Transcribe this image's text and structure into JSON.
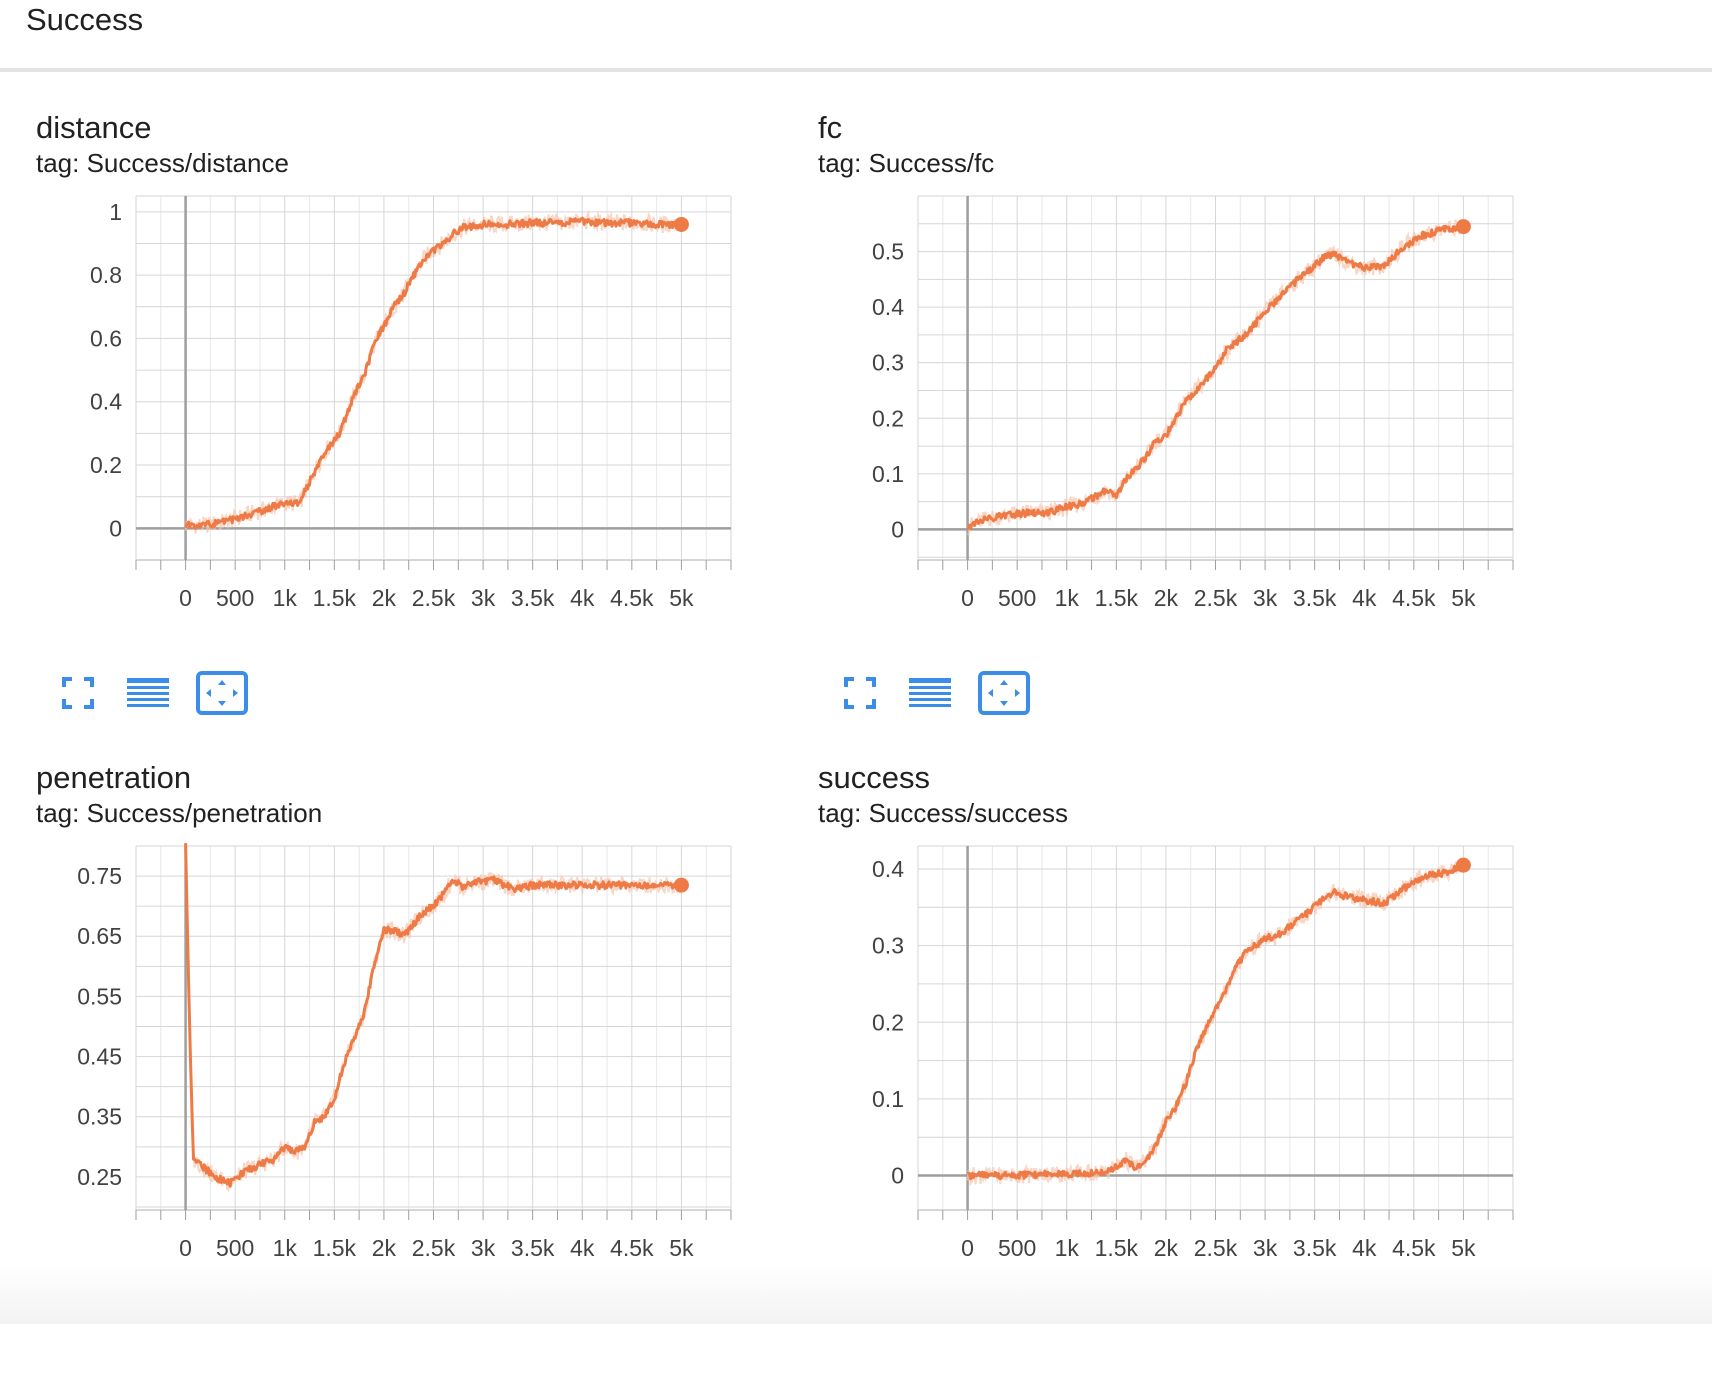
{
  "section": {
    "title": "Success"
  },
  "colors": {
    "series": "#ee7a45",
    "series_light": "#f6c4ae",
    "grid": "#d6d6d6",
    "axis": "#9e9e9e",
    "icon": "#3b8de8"
  },
  "toolbar_icons": [
    "fullscreen-icon",
    "data-table-icon",
    "fit-domain-icon"
  ],
  "chart_data": [
    {
      "type": "line",
      "title": "distance",
      "tag": "tag: Success/distance",
      "xlim": [
        -500,
        5500
      ],
      "ylim": [
        -0.1,
        1.05
      ],
      "xticks": [
        0,
        500,
        1000,
        1500,
        2000,
        2500,
        3000,
        3500,
        4000,
        4500,
        5000
      ],
      "xtick_labels": [
        "0",
        "500",
        "1k",
        "1.5k",
        "2k",
        "2.5k",
        "3k",
        "3.5k",
        "4k",
        "4.5k",
        "5k"
      ],
      "yticks": [
        0,
        0.2,
        0.4,
        0.6,
        0.8,
        1
      ],
      "ytick_labels": [
        "0",
        "0.2",
        "0.4",
        "0.6",
        "0.8",
        "1"
      ],
      "series": [
        {
          "x": [
            0,
            200,
            400,
            600,
            800,
            1000,
            1150,
            1300,
            1400,
            1550,
            1700,
            1800,
            1900,
            2000,
            2100,
            2200,
            2300,
            2400,
            2500,
            2600,
            2700,
            2800,
            2900,
            3000,
            3200,
            3500,
            3800,
            4000,
            4200,
            4400,
            4600,
            4800,
            5000
          ],
          "y": [
            0.01,
            0.01,
            0.02,
            0.04,
            0.06,
            0.08,
            0.08,
            0.18,
            0.24,
            0.3,
            0.42,
            0.48,
            0.58,
            0.64,
            0.7,
            0.74,
            0.8,
            0.85,
            0.88,
            0.9,
            0.93,
            0.95,
            0.955,
            0.96,
            0.96,
            0.965,
            0.965,
            0.97,
            0.965,
            0.965,
            0.965,
            0.96,
            0.96
          ]
        }
      ]
    },
    {
      "type": "line",
      "title": "fc",
      "tag": "tag: Success/fc",
      "xlim": [
        -500,
        5500
      ],
      "ylim": [
        -0.055,
        0.6
      ],
      "xticks": [
        0,
        500,
        1000,
        1500,
        2000,
        2500,
        3000,
        3500,
        4000,
        4500,
        5000
      ],
      "xtick_labels": [
        "0",
        "500",
        "1k",
        "1.5k",
        "2k",
        "2.5k",
        "3k",
        "3.5k",
        "4k",
        "4.5k",
        "5k"
      ],
      "yticks": [
        0,
        0.1,
        0.2,
        0.3,
        0.4,
        0.5
      ],
      "ytick_labels": [
        "0",
        "0.1",
        "0.2",
        "0.3",
        "0.4",
        "0.5"
      ],
      "series": [
        {
          "x": [
            0,
            200,
            400,
            600,
            800,
            1000,
            1200,
            1400,
            1500,
            1600,
            1800,
            1900,
            2000,
            2200,
            2400,
            2500,
            2600,
            2800,
            3000,
            3200,
            3400,
            3600,
            3700,
            3800,
            4000,
            4200,
            4400,
            4600,
            4800,
            5000
          ],
          "y": [
            0.005,
            0.02,
            0.025,
            0.03,
            0.03,
            0.04,
            0.05,
            0.07,
            0.06,
            0.09,
            0.13,
            0.16,
            0.17,
            0.23,
            0.27,
            0.29,
            0.32,
            0.35,
            0.39,
            0.43,
            0.46,
            0.49,
            0.495,
            0.485,
            0.47,
            0.475,
            0.51,
            0.53,
            0.54,
            0.545
          ]
        }
      ]
    },
    {
      "type": "line",
      "title": "penetration",
      "tag": "tag: Success/penetration",
      "xlim": [
        -500,
        5500
      ],
      "ylim": [
        0.195,
        0.8
      ],
      "xticks": [
        0,
        500,
        1000,
        1500,
        2000,
        2500,
        3000,
        3500,
        4000,
        4500,
        5000
      ],
      "xtick_labels": [
        "0",
        "500",
        "1k",
        "1.5k",
        "2k",
        "2.5k",
        "3k",
        "3.5k",
        "4k",
        "4.5k",
        "5k"
      ],
      "yticks": [
        0.25,
        0.35,
        0.45,
        0.55,
        0.65,
        0.75
      ],
      "ytick_labels": [
        "0.25",
        "0.35",
        "0.45",
        "0.55",
        "0.65",
        "0.75"
      ],
      "series": [
        {
          "x": [
            0,
            40,
            80,
            150,
            300,
            450,
            600,
            750,
            900,
            1000,
            1100,
            1200,
            1300,
            1400,
            1500,
            1600,
            1700,
            1800,
            1900,
            2000,
            2100,
            2200,
            2300,
            2400,
            2500,
            2600,
            2700,
            2800,
            2900,
            3000,
            3100,
            3200,
            3300,
            3400,
            3500,
            3700,
            4000,
            4500,
            5000
          ],
          "y": [
            0.8,
            0.5,
            0.28,
            0.27,
            0.25,
            0.24,
            0.26,
            0.27,
            0.28,
            0.3,
            0.29,
            0.3,
            0.34,
            0.35,
            0.38,
            0.44,
            0.48,
            0.52,
            0.6,
            0.66,
            0.66,
            0.65,
            0.67,
            0.69,
            0.7,
            0.72,
            0.745,
            0.73,
            0.74,
            0.74,
            0.745,
            0.735,
            0.73,
            0.73,
            0.735,
            0.735,
            0.735,
            0.735,
            0.735
          ]
        }
      ]
    },
    {
      "type": "line",
      "title": "success",
      "tag": "tag: Success/success",
      "xlim": [
        -500,
        5500
      ],
      "ylim": [
        -0.045,
        0.43
      ],
      "xticks": [
        0,
        500,
        1000,
        1500,
        2000,
        2500,
        3000,
        3500,
        4000,
        4500,
        5000
      ],
      "xtick_labels": [
        "0",
        "500",
        "1k",
        "1.5k",
        "2k",
        "2.5k",
        "3k",
        "3.5k",
        "4k",
        "4.5k",
        "5k"
      ],
      "yticks": [
        0,
        0.1,
        0.2,
        0.3,
        0.4
      ],
      "ytick_labels": [
        "0",
        "0.1",
        "0.2",
        "0.3",
        "0.4"
      ],
      "series": [
        {
          "x": [
            0,
            400,
            800,
            1200,
            1400,
            1500,
            1600,
            1700,
            1800,
            1900,
            2000,
            2100,
            2200,
            2300,
            2400,
            2600,
            2700,
            2800,
            2900,
            3000,
            3100,
            3200,
            3400,
            3500,
            3600,
            3700,
            3800,
            4000,
            4200,
            4400,
            4600,
            4800,
            5000
          ],
          "y": [
            0,
            0,
            0.002,
            0.003,
            0.005,
            0.012,
            0.02,
            0.01,
            0.02,
            0.04,
            0.07,
            0.09,
            0.12,
            0.16,
            0.19,
            0.24,
            0.27,
            0.29,
            0.3,
            0.31,
            0.31,
            0.32,
            0.34,
            0.35,
            0.365,
            0.37,
            0.365,
            0.36,
            0.355,
            0.375,
            0.39,
            0.395,
            0.405
          ]
        }
      ]
    }
  ]
}
